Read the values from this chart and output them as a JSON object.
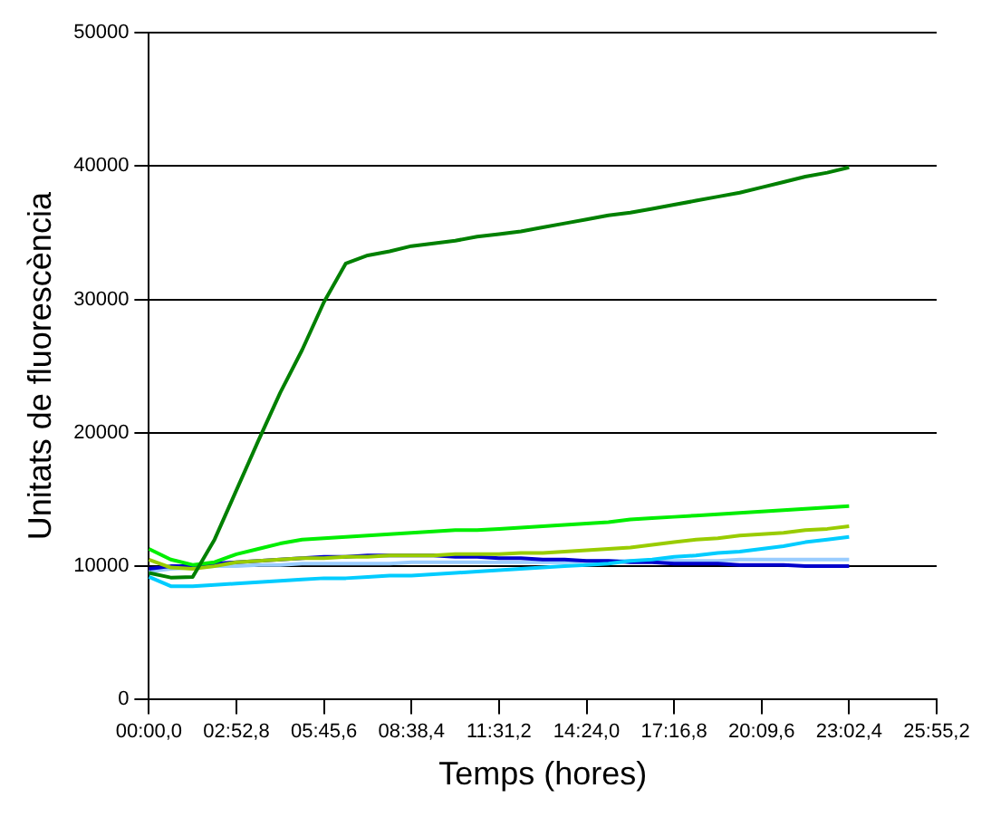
{
  "chart_data": {
    "type": "line",
    "xlabel": "Temps (hores)",
    "ylabel": "Unitats de fluorescència",
    "categories": [
      "00:00,0",
      null,
      null,
      null,
      "02:52,8",
      null,
      null,
      null,
      "05:45,6",
      null,
      null,
      null,
      "08:38,4",
      null,
      null,
      null,
      "11:31,2",
      null,
      null,
      null,
      "14:24,0",
      null,
      null,
      null,
      "17:16,8",
      null,
      null,
      null,
      "20:09,6",
      null,
      null,
      null,
      "23:02,4",
      null,
      null,
      null,
      "25:55,2"
    ],
    "ylim": [
      0,
      50000
    ],
    "yticks": [
      0,
      10000,
      20000,
      30000,
      40000,
      50000
    ],
    "grid": "y",
    "legend": false,
    "marker": "none",
    "line_style": "solid",
    "series": [
      {
        "color": "#008000",
        "values": [
          9500,
          9150,
          9200,
          12000,
          15700,
          19400,
          23000,
          26200,
          29800,
          32700,
          33300,
          33600,
          34000,
          34200,
          34400,
          34700,
          34900,
          35100,
          35400,
          35700,
          36000,
          36300,
          36500,
          36800,
          37100,
          37400,
          37700,
          38000,
          38400,
          38800,
          39200,
          39500,
          39900,
          null,
          null,
          null,
          null
        ]
      },
      {
        "color": "#00ee00",
        "values": [
          11300,
          10500,
          10100,
          10300,
          10900,
          11300,
          11700,
          12000,
          12100,
          12200,
          12300,
          12400,
          12500,
          12600,
          12700,
          12700,
          12800,
          12900,
          13000,
          13100,
          13200,
          13300,
          13500,
          13600,
          13700,
          13800,
          13900,
          14000,
          14100,
          14200,
          14300,
          14400,
          14500,
          null,
          null,
          null,
          null
        ]
      },
      {
        "color": "#99cc00",
        "values": [
          10500,
          9900,
          9800,
          10000,
          10300,
          10400,
          10500,
          10600,
          10600,
          10700,
          10700,
          10800,
          10800,
          10800,
          10900,
          10900,
          10900,
          11000,
          11000,
          11100,
          11200,
          11300,
          11400,
          11600,
          11800,
          12000,
          12100,
          12300,
          12400,
          12500,
          12700,
          12800,
          13000,
          null,
          null,
          null,
          null
        ]
      },
      {
        "color": "#00ccff",
        "values": [
          9200,
          8500,
          8500,
          8600,
          8700,
          8800,
          8900,
          9000,
          9100,
          9100,
          9200,
          9300,
          9300,
          9400,
          9500,
          9600,
          9700,
          9800,
          9900,
          10000,
          10100,
          10200,
          10400,
          10500,
          10700,
          10800,
          11000,
          11100,
          11300,
          11500,
          11800,
          12000,
          12200,
          null,
          null,
          null,
          null
        ]
      },
      {
        "color": "#0000cc",
        "values": [
          9800,
          10000,
          10000,
          10200,
          10300,
          10400,
          10500,
          10600,
          10700,
          10700,
          10800,
          10800,
          10800,
          10800,
          10700,
          10700,
          10600,
          10600,
          10500,
          10500,
          10400,
          10400,
          10300,
          10300,
          10200,
          10200,
          10200,
          10100,
          10100,
          10100,
          10000,
          10000,
          10000,
          null,
          null,
          null,
          null
        ]
      },
      {
        "color": "#99ccff",
        "values": [
          9600,
          9800,
          9900,
          10000,
          10000,
          10100,
          10100,
          10200,
          10200,
          10200,
          10200,
          10200,
          10300,
          10300,
          10300,
          10300,
          10300,
          10300,
          10300,
          10300,
          10400,
          10400,
          10400,
          10400,
          10400,
          10400,
          10400,
          10500,
          10500,
          10500,
          10500,
          10500,
          10500,
          null,
          null,
          null,
          null
        ]
      }
    ]
  }
}
